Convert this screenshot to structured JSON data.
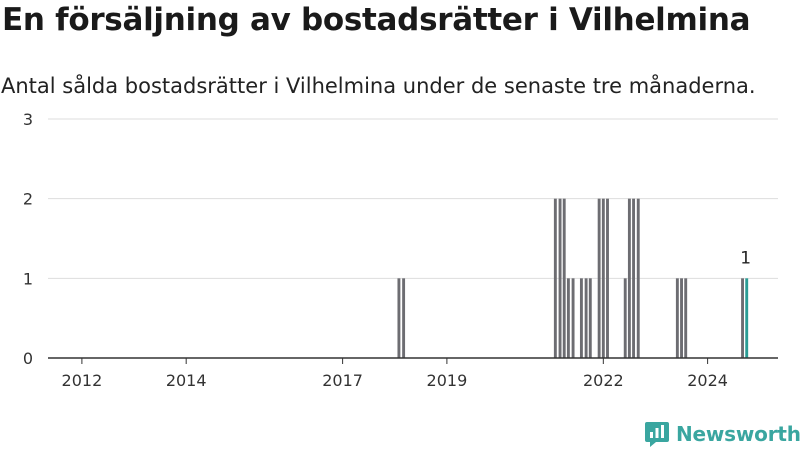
{
  "title": "En försäljning av bostadsrätter i Vilhelmina",
  "subtitle": "Antal sålda bostadsrätter i Vilhelmina under de senaste tre månaderna.",
  "brand": {
    "name": "Newsworthy",
    "icon": "newsworthy-logo-icon",
    "color": "#3aa6a0"
  },
  "colors": {
    "bar": "#6d6d72",
    "highlight": "#2a9d95",
    "grid": "#dddddd",
    "axis": "#333333"
  },
  "chart_data": {
    "type": "bar",
    "title": "En försäljning av bostadsrätter i Vilhelmina",
    "subtitle": "Antal sålda bostadsrätter i Vilhelmina under de senaste tre månaderna.",
    "xlabel": "",
    "ylabel": "",
    "ylim": [
      0,
      3
    ],
    "yticks": [
      "0",
      "1",
      "2",
      "3"
    ],
    "xlim": [
      2011.35,
      2025.35
    ],
    "xticks": [
      {
        "label": "2012",
        "value": 2012.0
      },
      {
        "label": "2014",
        "value": 2014.0
      },
      {
        "label": "2017",
        "value": 2017.0
      },
      {
        "label": "2019",
        "value": 2019.0
      },
      {
        "label": "2022",
        "value": 2022.0
      },
      {
        "label": "2024",
        "value": 2024.0
      }
    ],
    "grid": true,
    "series": [
      {
        "x": [
          2018.08,
          2018.17,
          2021.08,
          2021.17,
          2021.25,
          2021.33,
          2021.42,
          2021.58,
          2021.67,
          2021.75,
          2021.92,
          2022.0,
          2022.08,
          2022.42,
          2022.5,
          2022.58,
          2022.67,
          2023.42,
          2023.5,
          2023.58,
          2024.67,
          2024.75
        ],
        "values": [
          1,
          1,
          2,
          2,
          2,
          1,
          1,
          1,
          1,
          1,
          2,
          2,
          2,
          1,
          2,
          2,
          2,
          1,
          1,
          1,
          1,
          1
        ]
      }
    ],
    "highlight": {
      "x": 2024.75,
      "value": 1,
      "label": "1"
    }
  }
}
